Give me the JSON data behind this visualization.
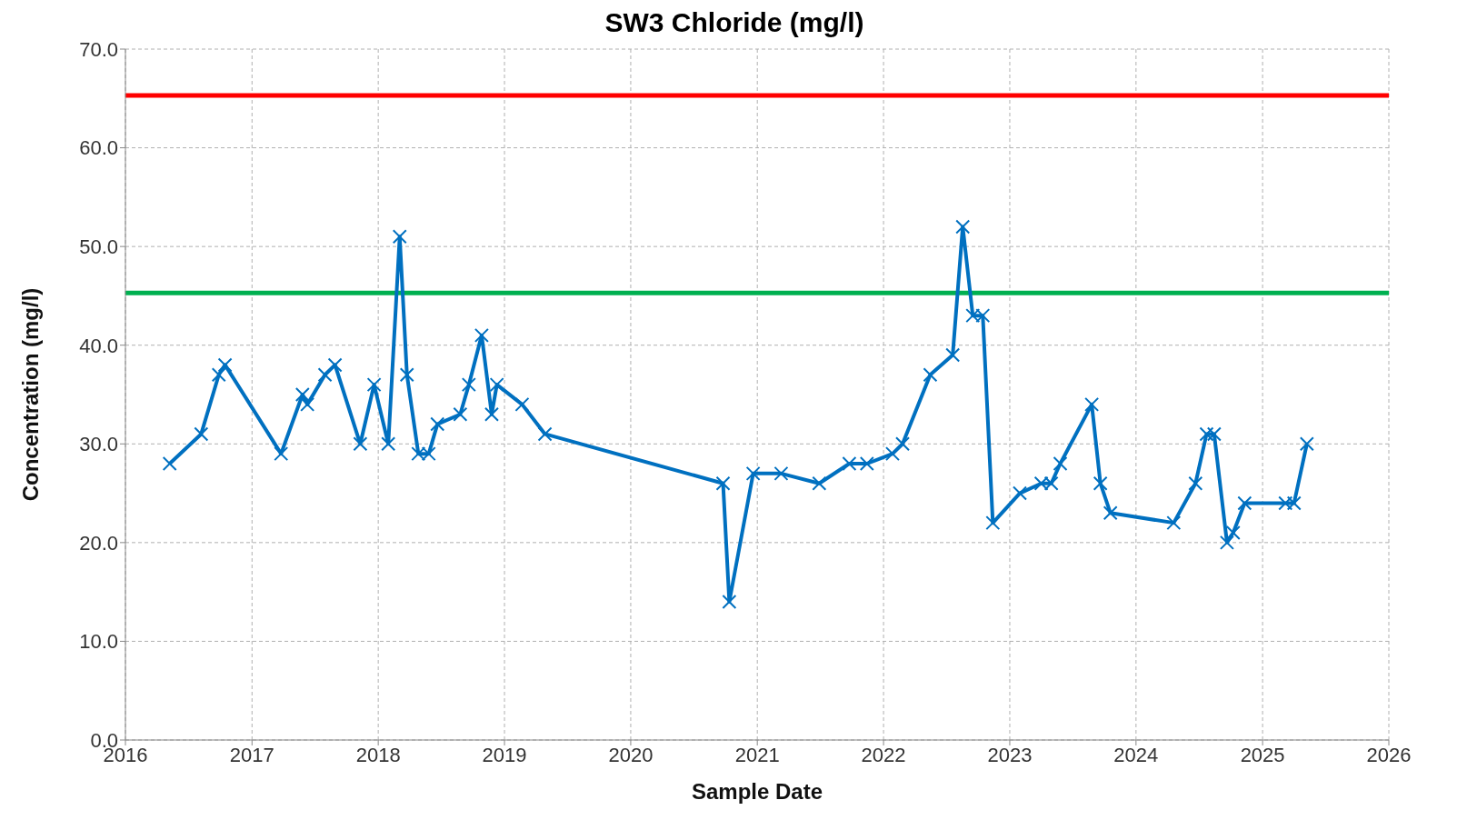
{
  "chart_data": {
    "type": "line",
    "title": "SW3 Chloride (mg/l)",
    "xlabel": "Sample Date",
    "ylabel": "Concentration (mg/l)",
    "x": [
      "2016-05-08",
      "2016-08-07",
      "2016-09-27",
      "2016-10-15",
      "2017-03-26",
      "2017-05-27",
      "2017-06-10",
      "2017-07-31",
      "2017-08-29",
      "2017-11-10",
      "2017-12-20",
      "2018-01-30",
      "2018-03-04",
      "2018-03-25",
      "2018-04-27",
      "2018-05-27",
      "2018-06-21",
      "2018-08-26",
      "2018-09-20",
      "2018-10-27",
      "2018-11-25",
      "2018-12-10",
      "2019-02-21",
      "2019-04-28",
      "2020-09-24",
      "2020-10-12",
      "2020-12-20",
      "2021-03-11",
      "2021-06-29",
      "2021-09-24",
      "2021-11-14",
      "2022-01-27",
      "2022-02-25",
      "2022-05-16",
      "2022-07-20",
      "2022-08-18",
      "2022-09-16",
      "2022-10-15",
      "2022-11-13",
      "2023-01-30",
      "2023-04-02",
      "2023-05-01",
      "2023-05-27",
      "2023-08-26",
      "2023-09-20",
      "2023-10-19",
      "2024-04-19",
      "2024-06-21",
      "2024-07-23",
      "2024-08-14",
      "2024-09-20",
      "2024-10-08",
      "2024-11-10",
      "2025-03-08",
      "2025-04-02",
      "2025-05-09"
    ],
    "series": [
      {
        "color": "#0070c0",
        "values": [
          28,
          31,
          37,
          38,
          29,
          35,
          34,
          37,
          38,
          30,
          36,
          30,
          51,
          37,
          29,
          29,
          32,
          33,
          36,
          41,
          33,
          36,
          34,
          31,
          26,
          14,
          27,
          27,
          26,
          28,
          28,
          29,
          30,
          37,
          39,
          52,
          43,
          43,
          22,
          25,
          26,
          26,
          28,
          34,
          26,
          23,
          22,
          26,
          31,
          31,
          20,
          21,
          24,
          24,
          24,
          30
        ]
      }
    ],
    "xlim": [
      "2016",
      "2026"
    ],
    "xticks": [
      "2016",
      "2017",
      "2018",
      "2019",
      "2020",
      "2021",
      "2022",
      "2023",
      "2024",
      "2025",
      "2026"
    ],
    "ylim": [
      0,
      70
    ],
    "yticks": [
      {
        "value": 0,
        "label": "0.0"
      },
      {
        "value": 10,
        "label": "10.0"
      },
      {
        "value": 20,
        "label": "20.0"
      },
      {
        "value": 30,
        "label": "30.0"
      },
      {
        "value": 40,
        "label": "40.0"
      },
      {
        "value": 50,
        "label": "50.0"
      },
      {
        "value": 60,
        "label": "60.0"
      },
      {
        "value": 70,
        "label": "70.0"
      }
    ],
    "ref_lines": [
      {
        "axis": "y",
        "value": 65.3,
        "color": "#ff0000"
      },
      {
        "axis": "y",
        "value": 45.3,
        "color": "#00b050"
      }
    ],
    "grid": true,
    "marker": "cross",
    "line_style": "solid"
  }
}
